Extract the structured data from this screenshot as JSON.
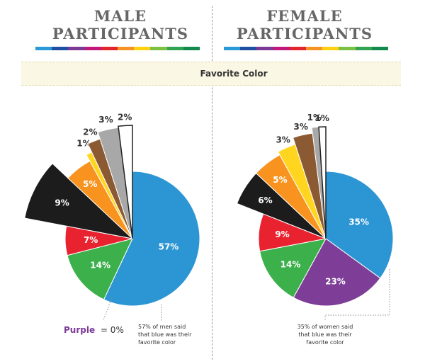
{
  "header": {
    "male_title_line1": "MALE",
    "male_title_line2": "PARTICIPANTS",
    "female_title_line1": "FEMALE",
    "female_title_line2": "PARTICIPANTS"
  },
  "banner": {
    "label": "Favorite Color"
  },
  "rainbow_colors": [
    "#2a9ad6",
    "#1e4fa3",
    "#7b3a96",
    "#c2187a",
    "#e3262d",
    "#f39424",
    "#fdd10f",
    "#7cc142",
    "#32a351",
    "#138a4d"
  ],
  "chart_data": [
    {
      "type": "pie",
      "title": "MALE PARTICIPANTS",
      "slices": [
        {
          "category": "Blue",
          "value": 57,
          "label": "57%",
          "color": "#2c96d4"
        },
        {
          "category": "Green",
          "value": 14,
          "label": "14%",
          "color": "#3bb04b"
        },
        {
          "category": "Red",
          "value": 7,
          "label": "7%",
          "color": "#e8232f"
        },
        {
          "category": "Black",
          "value": 9,
          "label": "9%",
          "color": "#1c1c1c"
        },
        {
          "category": "Orange",
          "value": 5,
          "label": "5%",
          "color": "#f7931e"
        },
        {
          "category": "Yellow",
          "value": 1,
          "label": "1%",
          "color": "#ffd51f"
        },
        {
          "category": "Brown",
          "value": 2,
          "label": "2%",
          "color": "#8b5a32"
        },
        {
          "category": "Gray",
          "value": 3,
          "label": "3%",
          "color": "#a8a8a8"
        },
        {
          "category": "White",
          "value": 2,
          "label": "2%",
          "color": "#ffffff"
        },
        {
          "category": "Purple",
          "value": 0,
          "label": "0%",
          "color": "#7b3a96"
        }
      ],
      "notes": {
        "purple_word": "Purple",
        "purple_rest": "= 0%",
        "blue_note_line1": "57% of men said",
        "blue_note_line2": "that blue was their",
        "blue_note_line3": "favorite color"
      }
    },
    {
      "type": "pie",
      "title": "FEMALE PARTICIPANTS",
      "slices": [
        {
          "category": "Blue",
          "value": 35,
          "label": "35%",
          "color": "#2c96d4"
        },
        {
          "category": "Purple",
          "value": 23,
          "label": "23%",
          "color": "#7e3e98"
        },
        {
          "category": "Green",
          "value": 14,
          "label": "14%",
          "color": "#3bb04b"
        },
        {
          "category": "Red",
          "value": 9,
          "label": "9%",
          "color": "#e8232f"
        },
        {
          "category": "Black",
          "value": 6,
          "label": "6%",
          "color": "#1c1c1c"
        },
        {
          "category": "Orange",
          "value": 5,
          "label": "5%",
          "color": "#f7931e"
        },
        {
          "category": "Yellow",
          "value": 3,
          "label": "3%",
          "color": "#ffd51f"
        },
        {
          "category": "Brown",
          "value": 3,
          "label": "3%",
          "color": "#8b5a32"
        },
        {
          "category": "Gray",
          "value": 1,
          "label": "1%",
          "color": "#a8a8a8"
        },
        {
          "category": "White",
          "value": 1,
          "label": "1%",
          "color": "#ffffff"
        }
      ],
      "notes": {
        "blue_note_line1": "35% of women said",
        "blue_note_line2": "that blue was their",
        "blue_note_line3": "favorite color"
      }
    }
  ]
}
